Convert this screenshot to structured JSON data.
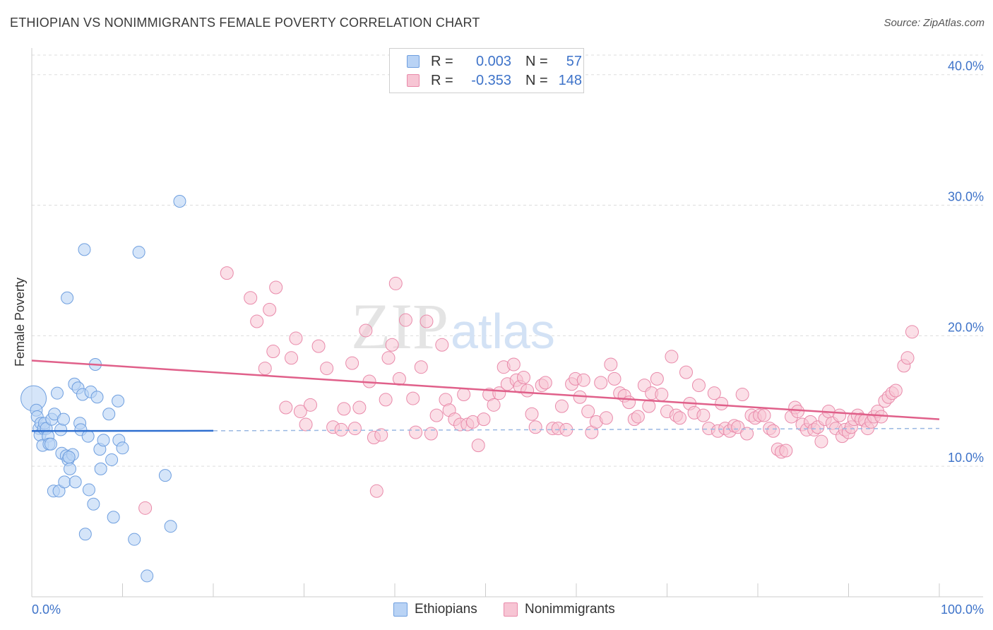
{
  "header": {
    "title": "ETHIOPIAN VS NONIMMIGRANTS FEMALE POVERTY CORRELATION CHART",
    "source": "Source: ZipAtlas.com"
  },
  "watermark": {
    "zip": "ZIP",
    "atlas": "atlas"
  },
  "legend": {
    "rows": [
      {
        "r_key": "R =",
        "r_value": "0.003",
        "n_key": "N =",
        "n_value": "57"
      },
      {
        "r_key": "R =",
        "r_value": "-0.353",
        "n_key": "N =",
        "n_value": "148"
      }
    ]
  },
  "colors": {
    "blue_fill": "#b9d3f5",
    "blue_stroke": "#6f9fdf",
    "blue_line": "#2f6fd0",
    "pink_fill": "#f7c5d4",
    "pink_stroke": "#e98aaa",
    "pink_line": "#e0608a",
    "label": "#3e73c9",
    "grid": "#dddddd"
  },
  "chart_data": {
    "type": "scatter",
    "title": "ETHIOPIAN VS NONIMMIGRANTS FEMALE POVERTY CORRELATION CHART",
    "xlabel": "",
    "ylabel": "Female Poverty",
    "xlim": [
      0,
      100
    ],
    "ylim": [
      0,
      41.5
    ],
    "x_tick_labels": [
      "0.0%",
      "100.0%"
    ],
    "y_ticks": [
      10,
      20,
      30,
      40
    ],
    "y_tick_labels": [
      "10.0%",
      "20.0%",
      "30.0%",
      "40.0%"
    ],
    "grid": "horizontal dashed",
    "legend_position": "bottom-center",
    "series": [
      {
        "name": "Ethiopians",
        "color": "#b9d3f5",
        "r": 0.003,
        "n": 57,
        "trend": {
          "x": [
            0,
            20
          ],
          "y": [
            12.7,
            12.72
          ]
        },
        "trend_extended": {
          "x": [
            20,
            100
          ],
          "y": [
            12.72,
            12.9
          ]
        },
        "points": [
          [
            0.2,
            15.2,
            3
          ],
          [
            0.5,
            14.3,
            1
          ],
          [
            0.6,
            13.8,
            1
          ],
          [
            0.8,
            12.9,
            1
          ],
          [
            0.9,
            12.4,
            1
          ],
          [
            1.0,
            13.3,
            1
          ],
          [
            1.2,
            11.6,
            1
          ],
          [
            1.3,
            12.9,
            1
          ],
          [
            1.4,
            13.3,
            1
          ],
          [
            1.6,
            12.9,
            1
          ],
          [
            1.8,
            12.3,
            1
          ],
          [
            1.9,
            11.7,
            1
          ],
          [
            2.1,
            11.7,
            1
          ],
          [
            2.2,
            13.6,
            1
          ],
          [
            2.4,
            8.1,
            1
          ],
          [
            2.5,
            14.0,
            1
          ],
          [
            2.8,
            15.6,
            1
          ],
          [
            3.0,
            8.1,
            1
          ],
          [
            3.2,
            12.8,
            1
          ],
          [
            3.3,
            11.0,
            1
          ],
          [
            3.5,
            13.6,
            1
          ],
          [
            3.6,
            8.8,
            1
          ],
          [
            3.8,
            10.8,
            1
          ],
          [
            3.9,
            22.9,
            1
          ],
          [
            4.0,
            10.5,
            1
          ],
          [
            4.2,
            9.8,
            1
          ],
          [
            4.5,
            10.9,
            1
          ],
          [
            4.7,
            16.3,
            1
          ],
          [
            4.8,
            8.8,
            1
          ],
          [
            5.1,
            16.0,
            1
          ],
          [
            5.3,
            13.3,
            1
          ],
          [
            5.4,
            12.8,
            1
          ],
          [
            5.6,
            15.5,
            1
          ],
          [
            5.8,
            26.6,
            1
          ],
          [
            5.9,
            4.8,
            1
          ],
          [
            6.2,
            12.3,
            1
          ],
          [
            6.3,
            8.2,
            1
          ],
          [
            6.5,
            15.7,
            1
          ],
          [
            6.8,
            7.1,
            1
          ],
          [
            7.0,
            17.8,
            1
          ],
          [
            7.2,
            15.3,
            1
          ],
          [
            7.5,
            11.3,
            1
          ],
          [
            7.6,
            9.8,
            1
          ],
          [
            7.9,
            12.0,
            1
          ],
          [
            8.5,
            14.0,
            1
          ],
          [
            8.8,
            10.5,
            1
          ],
          [
            9.0,
            6.1,
            1
          ],
          [
            9.5,
            15.0,
            1
          ],
          [
            9.6,
            12.0,
            1
          ],
          [
            10.0,
            11.4,
            1
          ],
          [
            11.3,
            4.4,
            1
          ],
          [
            11.8,
            26.4,
            1
          ],
          [
            12.7,
            1.6,
            1
          ],
          [
            14.7,
            9.3,
            1
          ],
          [
            15.3,
            5.4,
            1
          ],
          [
            16.3,
            30.3,
            1
          ],
          [
            4.1,
            10.7,
            1
          ]
        ]
      },
      {
        "name": "Nonimmigrants",
        "color": "#f7c5d4",
        "r": -0.353,
        "n": 148,
        "trend": {
          "x": [
            0,
            100
          ],
          "y": [
            18.1,
            13.6
          ]
        },
        "points": [
          [
            12.5,
            6.8
          ],
          [
            21.5,
            24.8
          ],
          [
            24.1,
            22.9
          ],
          [
            24.8,
            21.1
          ],
          [
            25.7,
            17.5
          ],
          [
            26.2,
            22.0
          ],
          [
            26.6,
            18.8
          ],
          [
            26.9,
            23.7
          ],
          [
            28.0,
            14.5
          ],
          [
            28.6,
            18.3
          ],
          [
            29.1,
            19.8
          ],
          [
            29.6,
            14.2
          ],
          [
            30.2,
            13.2
          ],
          [
            30.7,
            14.7
          ],
          [
            31.6,
            19.2
          ],
          [
            32.5,
            17.5
          ],
          [
            33.2,
            13.0
          ],
          [
            34.1,
            12.8
          ],
          [
            34.4,
            14.4
          ],
          [
            35.3,
            17.9
          ],
          [
            35.6,
            12.9
          ],
          [
            36.1,
            14.5
          ],
          [
            36.8,
            20.4
          ],
          [
            37.2,
            16.5
          ],
          [
            37.7,
            12.2
          ],
          [
            38.5,
            12.4
          ],
          [
            39.0,
            15.1
          ],
          [
            39.3,
            18.3
          ],
          [
            39.7,
            19.3
          ],
          [
            40.1,
            24.0
          ],
          [
            40.5,
            16.7
          ],
          [
            41.2,
            21.2
          ],
          [
            42.0,
            15.2
          ],
          [
            42.3,
            12.6
          ],
          [
            42.9,
            17.6
          ],
          [
            43.5,
            21.1
          ],
          [
            44.0,
            12.5
          ],
          [
            44.6,
            13.9
          ],
          [
            45.2,
            19.3
          ],
          [
            45.6,
            15.1
          ],
          [
            46.0,
            14.3
          ],
          [
            46.6,
            13.6
          ],
          [
            47.2,
            13.2
          ],
          [
            47.6,
            15.5
          ],
          [
            48.0,
            13.2
          ],
          [
            48.6,
            13.4
          ],
          [
            49.2,
            11.6
          ],
          [
            49.8,
            13.6
          ],
          [
            50.4,
            15.5
          ],
          [
            50.9,
            14.7
          ],
          [
            51.5,
            15.6
          ],
          [
            52.0,
            17.6
          ],
          [
            52.4,
            16.3
          ],
          [
            53.1,
            17.8
          ],
          [
            53.4,
            16.6
          ],
          [
            53.8,
            16.1
          ],
          [
            54.2,
            16.8
          ],
          [
            54.6,
            15.8
          ],
          [
            55.1,
            14.0
          ],
          [
            55.5,
            13.0
          ],
          [
            56.2,
            16.2
          ],
          [
            56.6,
            16.4
          ],
          [
            57.4,
            12.9
          ],
          [
            58.0,
            12.9
          ],
          [
            58.4,
            14.6
          ],
          [
            58.9,
            12.8
          ],
          [
            59.5,
            16.3
          ],
          [
            59.9,
            16.7
          ],
          [
            60.4,
            15.3
          ],
          [
            60.8,
            16.6
          ],
          [
            61.3,
            14.2
          ],
          [
            61.7,
            12.6
          ],
          [
            62.2,
            13.4
          ],
          [
            62.7,
            16.4
          ],
          [
            63.3,
            13.7
          ],
          [
            63.8,
            17.8
          ],
          [
            64.2,
            16.7
          ],
          [
            64.8,
            15.6
          ],
          [
            65.3,
            15.4
          ],
          [
            65.8,
            14.9
          ],
          [
            66.4,
            13.6
          ],
          [
            66.8,
            13.8
          ],
          [
            67.5,
            16.2
          ],
          [
            68.0,
            14.6
          ],
          [
            68.3,
            15.6
          ],
          [
            68.9,
            16.7
          ],
          [
            69.4,
            15.5
          ],
          [
            70.0,
            14.2
          ],
          [
            70.5,
            18.4
          ],
          [
            71.0,
            13.9
          ],
          [
            71.4,
            13.7
          ],
          [
            72.1,
            17.2
          ],
          [
            72.5,
            14.8
          ],
          [
            73.0,
            14.1
          ],
          [
            73.5,
            16.2
          ],
          [
            74.0,
            13.9
          ],
          [
            74.6,
            12.9
          ],
          [
            75.2,
            15.6
          ],
          [
            75.6,
            12.7
          ],
          [
            76.0,
            14.8
          ],
          [
            76.4,
            12.9
          ],
          [
            76.9,
            12.7
          ],
          [
            77.4,
            13.1
          ],
          [
            77.8,
            13.0
          ],
          [
            78.3,
            15.5
          ],
          [
            78.8,
            12.5
          ],
          [
            79.3,
            13.9
          ],
          [
            79.7,
            13.7
          ],
          [
            80.2,
            13.9
          ],
          [
            80.7,
            13.9
          ],
          [
            81.3,
            12.9
          ],
          [
            81.7,
            12.7
          ],
          [
            82.2,
            11.3
          ],
          [
            82.6,
            11.1
          ],
          [
            83.1,
            11.2
          ],
          [
            83.7,
            13.8
          ],
          [
            84.1,
            14.5
          ],
          [
            84.4,
            14.2
          ],
          [
            84.9,
            13.2
          ],
          [
            85.4,
            12.8
          ],
          [
            85.8,
            13.4
          ],
          [
            86.2,
            12.8
          ],
          [
            86.6,
            13.0
          ],
          [
            87.0,
            11.9
          ],
          [
            87.4,
            13.6
          ],
          [
            87.8,
            14.2
          ],
          [
            88.2,
            13.3
          ],
          [
            88.6,
            12.9
          ],
          [
            89.0,
            13.9
          ],
          [
            89.3,
            12.3
          ],
          [
            89.6,
            12.8
          ],
          [
            90.0,
            12.6
          ],
          [
            90.3,
            13.0
          ],
          [
            90.6,
            13.6
          ],
          [
            91.0,
            13.9
          ],
          [
            91.4,
            13.6
          ],
          [
            91.8,
            13.5
          ],
          [
            92.1,
            12.9
          ],
          [
            92.5,
            13.4
          ],
          [
            92.8,
            13.8
          ],
          [
            93.2,
            14.2
          ],
          [
            93.6,
            13.8
          ],
          [
            94.0,
            15.0
          ],
          [
            94.4,
            15.3
          ],
          [
            94.8,
            15.6
          ],
          [
            95.2,
            15.8
          ],
          [
            96.1,
            17.7
          ],
          [
            96.5,
            18.3
          ],
          [
            97.0,
            20.3
          ],
          [
            38.0,
            8.1
          ]
        ]
      }
    ]
  }
}
